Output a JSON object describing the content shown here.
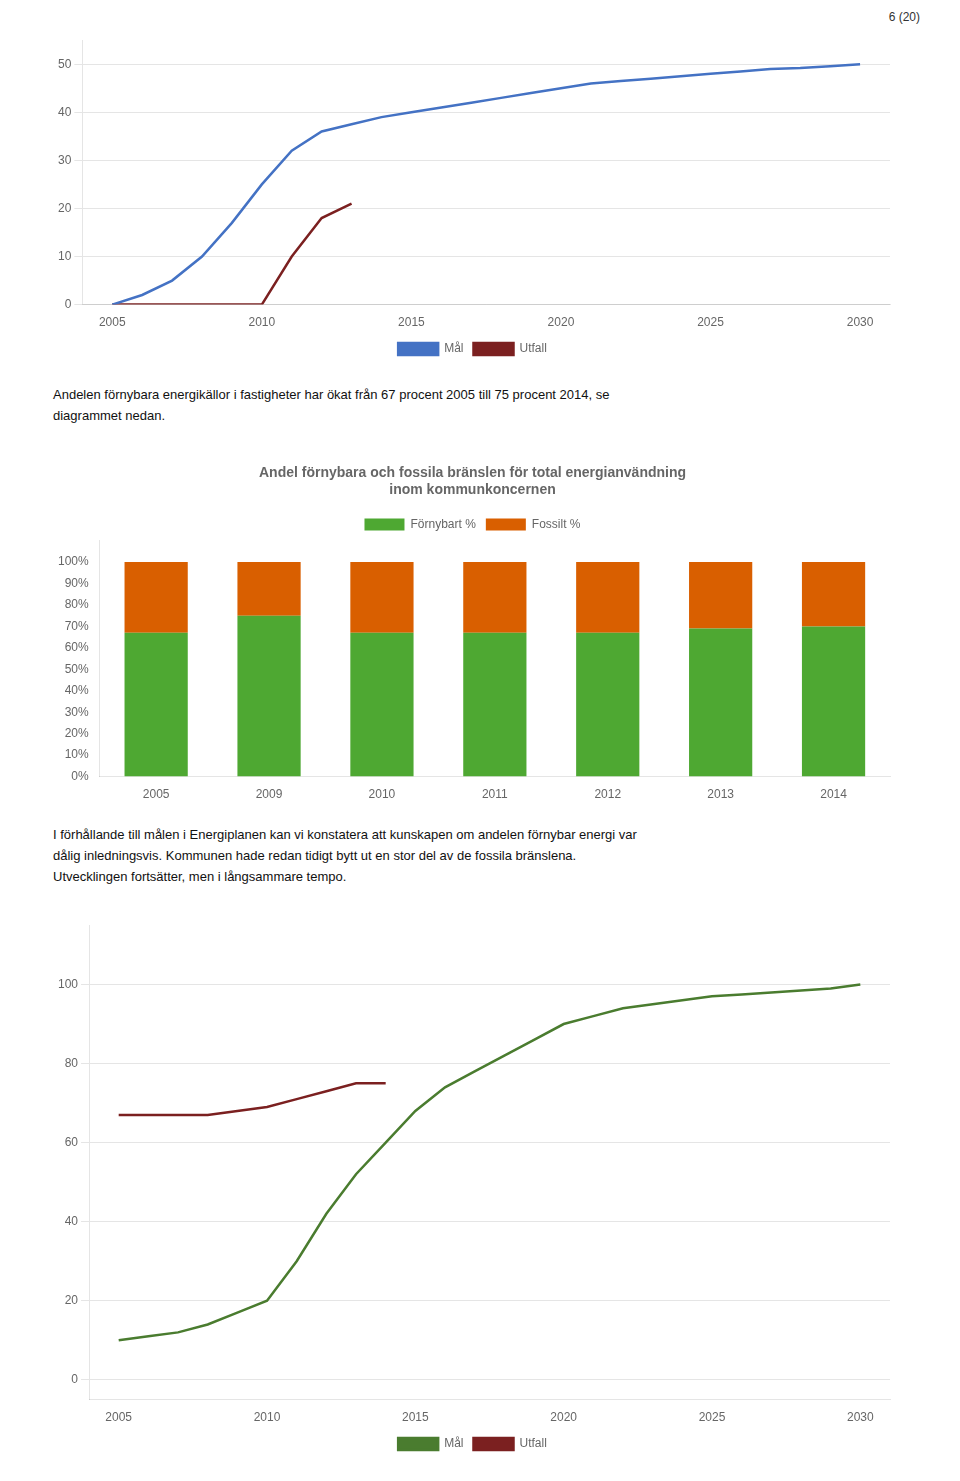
{
  "chart_data": [
    {
      "type": "line",
      "xlim": [
        2004,
        2031
      ],
      "xticks": [
        2005,
        2010,
        2015,
        2020,
        2025,
        2030
      ],
      "ylim": [
        0,
        55
      ],
      "yticks": [
        0,
        10,
        20,
        30,
        40,
        50
      ],
      "grid": "y",
      "legend": "bottom",
      "series": [
        {
          "name": "Mål",
          "color": "#4472c4",
          "x": [
            2005,
            2006,
            2007,
            2008,
            2009,
            2010,
            2011,
            2012,
            2013,
            2014,
            2015,
            2016,
            2017,
            2018,
            2019,
            2020,
            2021,
            2022,
            2023,
            2024,
            2025,
            2026,
            2027,
            2028,
            2029,
            2030
          ],
          "values": [
            0,
            2,
            5,
            10,
            17,
            25,
            32,
            36,
            37.5,
            39,
            40,
            41,
            42,
            43,
            44,
            45,
            46,
            46.5,
            47,
            47.5,
            48,
            48.5,
            49,
            49.2,
            49.6,
            50
          ]
        },
        {
          "name": "Utfall",
          "color": "#7b2020",
          "x": [
            2005,
            2006,
            2007,
            2008,
            2009,
            2010,
            2011,
            2012,
            2013
          ],
          "values": [
            0,
            0,
            0,
            0,
            0,
            0,
            10,
            18,
            21
          ]
        }
      ]
    },
    {
      "type": "bar",
      "stacked": true,
      "title": [
        "Andel förnybara och fossila bränslen för total energianvändning",
        "inom kommunkoncernen"
      ],
      "categories": [
        "2005",
        "2009",
        "2010",
        "2011",
        "2012",
        "2013",
        "2014"
      ],
      "ylim": [
        0,
        110
      ],
      "yticks": [
        {
          "value": 0,
          "label": "0%"
        },
        {
          "value": 10,
          "label": "10%"
        },
        {
          "value": 20,
          "label": "20%"
        },
        {
          "value": 30,
          "label": "30%"
        },
        {
          "value": 40,
          "label": "40%"
        },
        {
          "value": 50,
          "label": "50%"
        },
        {
          "value": 60,
          "label": "60%"
        },
        {
          "value": 70,
          "label": "70%"
        },
        {
          "value": 80,
          "label": "80%"
        },
        {
          "value": 90,
          "label": "90%"
        },
        {
          "value": 100,
          "label": "100%"
        }
      ],
      "grid": false,
      "legend": "top",
      "series": [
        {
          "name": "Förnybart %",
          "color": "#4ea832",
          "values": [
            67,
            75,
            67,
            67,
            67,
            69,
            70
          ]
        },
        {
          "name": "Fossilt %",
          "color": "#d95f00",
          "values": [
            33,
            25,
            33,
            33,
            33,
            31,
            30
          ]
        }
      ]
    },
    {
      "type": "line",
      "xlim": [
        2004,
        2031
      ],
      "xticks": [
        2005,
        2010,
        2015,
        2020,
        2025,
        2030
      ],
      "ylim": [
        -5,
        115
      ],
      "yticks": [
        0,
        20,
        40,
        60,
        80,
        100
      ],
      "grid": "y",
      "legend": "bottom",
      "series": [
        {
          "name": "Mål",
          "color": "#4a7c2f",
          "x": [
            2005,
            2006,
            2007,
            2008,
            2009,
            2010,
            2011,
            2012,
            2013,
            2014,
            2015,
            2016,
            2017,
            2018,
            2019,
            2020,
            2021,
            2022,
            2023,
            2024,
            2025,
            2026,
            2027,
            2028,
            2029,
            2030
          ],
          "values": [
            10,
            11,
            12,
            14,
            17,
            20,
            30,
            42,
            52,
            60,
            68,
            74,
            78,
            82,
            86,
            90,
            92,
            94,
            95,
            96,
            97,
            97.5,
            98,
            98.5,
            99,
            100
          ]
        },
        {
          "name": "Utfall",
          "color": "#7b2020",
          "x": [
            2005,
            2006,
            2007,
            2008,
            2009,
            2010,
            2011,
            2012,
            2013,
            2014
          ],
          "values": [
            67,
            67,
            67,
            67,
            68,
            69,
            71,
            73,
            75,
            75
          ]
        }
      ]
    }
  ],
  "annotations": [
    "6 (20)",
    "Andelen förnybara energikällor i fastigheter har ökat från 67 procent 2005 till 75 procent 2014, se\ndiagrammet nedan.",
    "I förhållande till målen i Energiplanen kan vi konstatera att kunskapen om andelen förnybar energi var\ndålig inledningsvis. Kommunen hade redan tidigt bytt ut en stor del av de fossila bränslena.\nUtvecklingen fortsätter, men i långsammare tempo."
  ]
}
